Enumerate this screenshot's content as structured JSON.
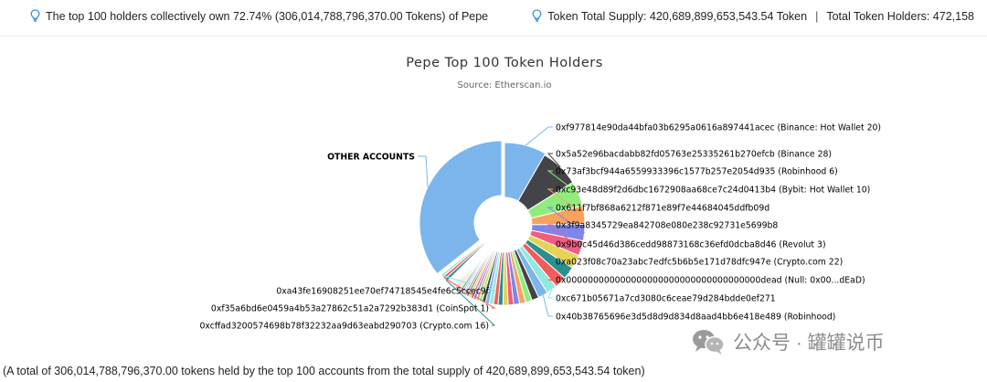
{
  "header": {
    "left_text": "The top 100 holders collectively own 72.74% (306,014,788,796,370.00 Tokens) of Pepe",
    "supply_text": "Token Total Supply: 420,689,899,653,543.54 Token",
    "separator": "|",
    "holders_text": "Total Token Holders: 472,158",
    "bulb_icon": "lightbulb-icon",
    "bulb_color": "#3498db"
  },
  "chart_data": {
    "type": "pie",
    "title": "Pepe Top 100 Token Holders",
    "subtitle": "Source: Etherscan.io",
    "slices": [
      {
        "label": "0xf977814e90da44bfa03b6295a0616a897441acec (Binance: Hot Wallet 20)",
        "value": 6.35,
        "color": "#7cb5ec"
      },
      {
        "label": "0x5a52e96bacdabb82fd05763e25335261b270efcb (Binance 28)",
        "value": 6.02,
        "color": "#434348"
      },
      {
        "label": "0x73af3bcf944a6559933396c1577b257e2054d935 (Robinhood 6)",
        "value": 3.85,
        "color": "#90ed7d"
      },
      {
        "label": "0xc93e48d89f2d6dbc1672908aa68ce7c24d0413b4 (Bybit: Hot Wallet 10)",
        "value": 2.85,
        "color": "#f7a35c"
      },
      {
        "label": "0x611f7bf868a6212f871e89f7e44684045ddfb09d",
        "value": 2.55,
        "color": "#8085e9"
      },
      {
        "label": "0x3f9a8345729ea842708e080e238c92731e5699b8",
        "value": 2.3,
        "color": "#f15c80"
      },
      {
        "label": "0x9b0c45d46d386cedd98873168c36efd0dcba8d46 (Revolut 3)",
        "value": 2.1,
        "color": "#e4d354"
      },
      {
        "label": "0xa023f08c70a23abc7edfc5b6b5e171d78dfc947e (Crypto.com 22)",
        "value": 1.95,
        "color": "#2b908f"
      },
      {
        "label": "0x000000000000000000000000000000000000dead (Null: 0x00...dEaD)",
        "value": 1.8,
        "color": "#f45b5b"
      },
      {
        "label": "0xc671b05671a7cd3080c6ceae79d284bdde0ef271",
        "value": 1.65,
        "color": "#91e8e1"
      },
      {
        "label": "0x40b38765696e3d5d8d9d834d8aad4bb6e418e489 (Robinhood)",
        "value": 1.5,
        "color": "#7cb5ec"
      },
      {
        "label": "",
        "value": 1.1,
        "color": "#434348"
      },
      {
        "label": "",
        "value": 1.0,
        "color": "#90ed7d"
      },
      {
        "label": "",
        "value": 0.95,
        "color": "#f7a35c"
      },
      {
        "label": "",
        "value": 0.9,
        "color": "#8085e9"
      },
      {
        "label": "",
        "value": 0.85,
        "color": "#f15c80"
      },
      {
        "label": "",
        "value": 0.8,
        "color": "#e4d354"
      },
      {
        "label": "",
        "value": 0.75,
        "color": "#2b908f"
      },
      {
        "label": "",
        "value": 0.7,
        "color": "#f45b5b"
      },
      {
        "label": "",
        "value": 0.65,
        "color": "#91e8e1"
      },
      {
        "label": "",
        "value": 0.6,
        "color": "#7cb5ec"
      },
      {
        "label": "",
        "value": 0.55,
        "color": "#434348"
      },
      {
        "label": "",
        "value": 0.5,
        "color": "#90ed7d"
      },
      {
        "label": "",
        "value": 0.47,
        "color": "#f7a35c"
      },
      {
        "label": "",
        "value": 0.44,
        "color": "#8085e9"
      },
      {
        "label": "",
        "value": 0.41,
        "color": "#f15c80"
      },
      {
        "label": "",
        "value": 0.38,
        "color": "#e4d354"
      },
      {
        "label": "",
        "value": 0.35,
        "color": "#2b908f"
      },
      {
        "label": "",
        "value": 0.33,
        "color": "#f45b5b"
      },
      {
        "label": "",
        "value": 0.31,
        "color": "#91e8e1"
      },
      {
        "label": "",
        "value": 0.29,
        "color": "#7cb5ec"
      },
      {
        "label": "",
        "value": 0.27,
        "color": "#434348"
      },
      {
        "label": "",
        "value": 0.25,
        "color": "#90ed7d"
      },
      {
        "label": "",
        "value": 0.23,
        "color": "#f7a35c"
      },
      {
        "label": "",
        "value": 0.21,
        "color": "#8085e9"
      },
      {
        "label": "",
        "value": 0.2,
        "color": "#f15c80"
      },
      {
        "label": "",
        "value": 0.19,
        "color": "#e4d354"
      },
      {
        "label": "",
        "value": 0.18,
        "color": "#2b908f"
      },
      {
        "label": "",
        "value": 0.17,
        "color": "#f45b5b"
      },
      {
        "label": "",
        "value": 0.16,
        "color": "#91e8e1"
      },
      {
        "label": "",
        "value": 0.15,
        "color": "#7cb5ec"
      },
      {
        "label": "",
        "value": 0.14,
        "color": "#434348"
      },
      {
        "label": "",
        "value": 0.13,
        "color": "#90ed7d"
      },
      {
        "label": "",
        "value": 0.12,
        "color": "#f7a35c"
      },
      {
        "label": "",
        "value": 0.11,
        "color": "#8085e9"
      },
      {
        "label": "",
        "value": 0.1,
        "color": "#f15c80"
      },
      {
        "label": "",
        "value": 0.1,
        "color": "#e4d354"
      },
      {
        "label": "0xcffad3200574698b78f32232aa9d63eabd290703 (Crypto.com 16)",
        "value": 0.5,
        "color": "#2b908f"
      },
      {
        "label": "0xf35a6bd6e0459a4b53a27862c51a2a7292b383d1 (CoinSpot 1)",
        "value": 0.45,
        "color": "#f45b5b"
      },
      {
        "label": "0xa43fe16908251ee70ef74718545e4fe6c5ccec9f",
        "value": 0.4,
        "color": "#91e8e1"
      },
      {
        "label": "OTHER ACCOUNTS",
        "value": 27.26,
        "color": "#7cb5ec"
      }
    ]
  },
  "footer": {
    "note": "(A total of 306,014,788,796,370.00 tokens held by the top 100 accounts from the total supply of 420,689,899,653,543.54 token)"
  },
  "watermark": {
    "text": "公众号 · 罐罐说币",
    "logo_icon": "wechat-icon"
  }
}
